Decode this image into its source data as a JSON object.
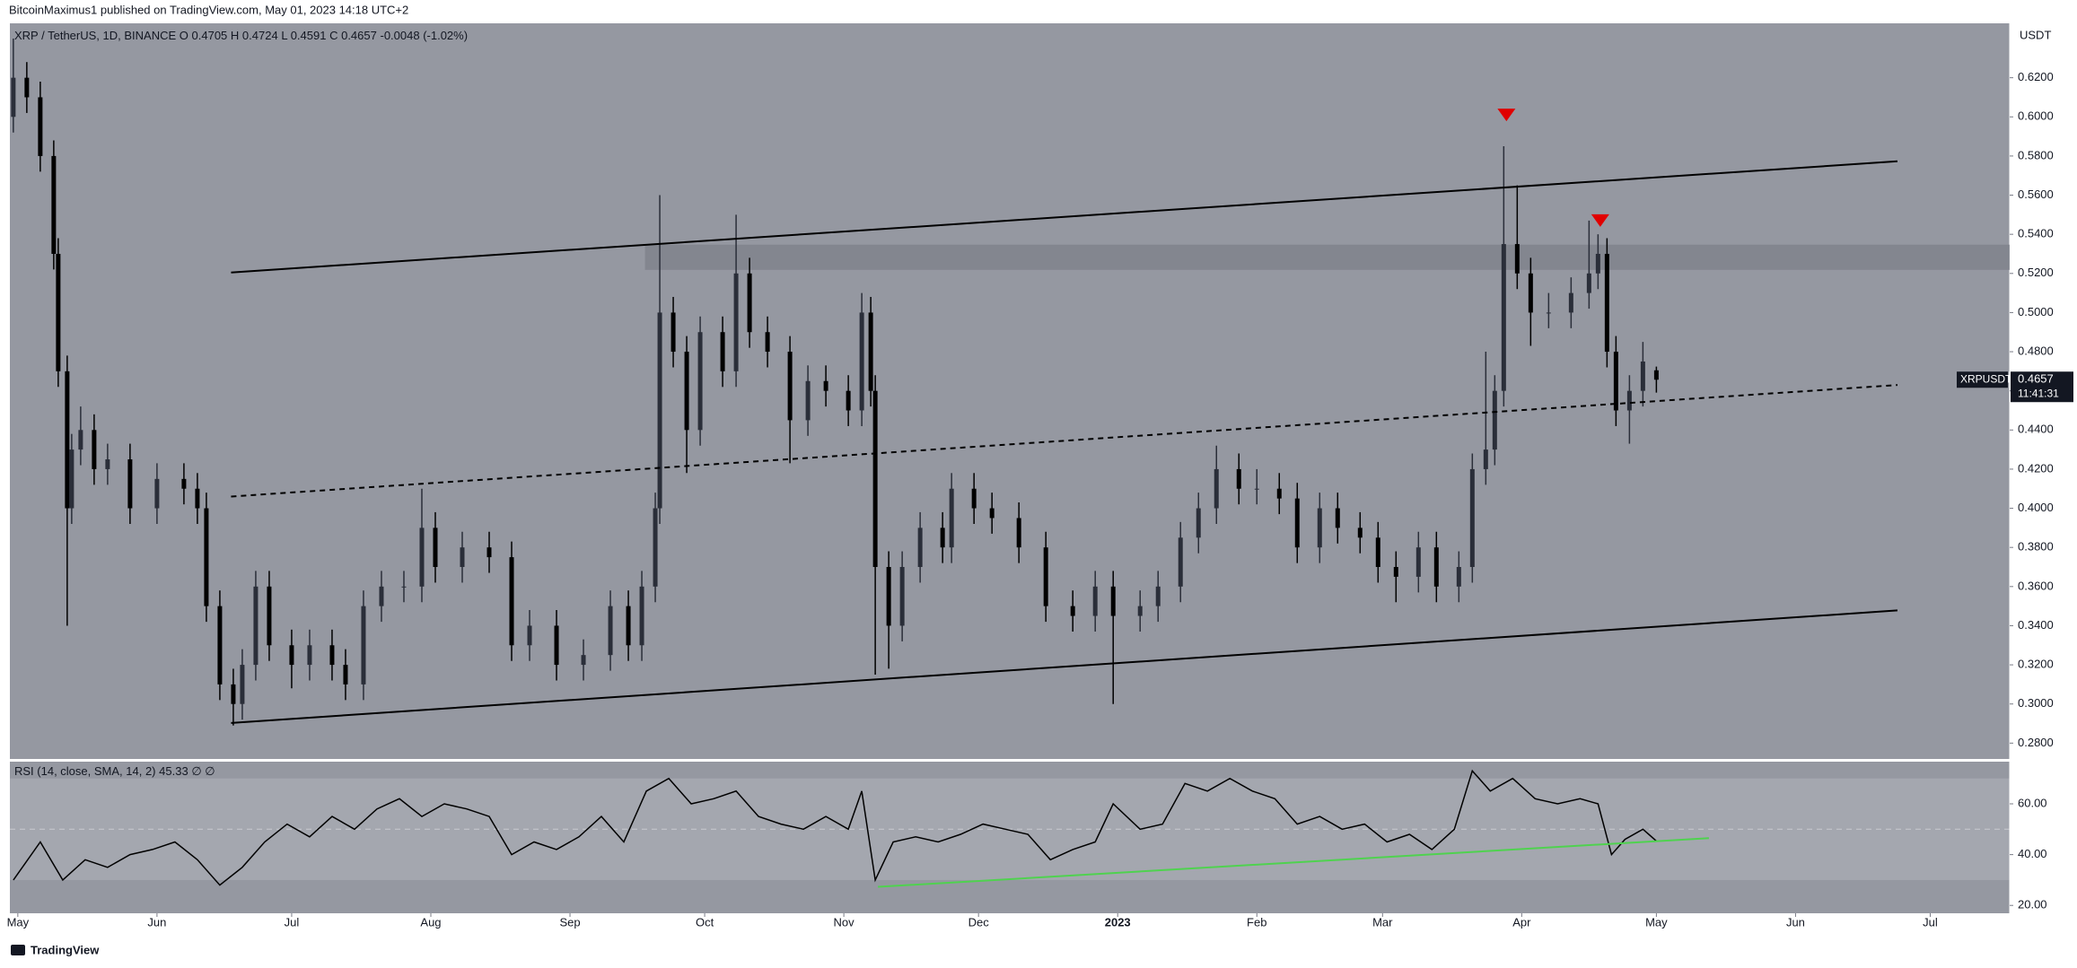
{
  "header": {
    "publisher": "BitcoinMaximus1 published on TradingView.com, May 01, 2023 14:18 UTC+2",
    "brand": "TradingView"
  },
  "chart_data": {
    "type": "candlestick",
    "symbol": "XRP / TetherUS, 1D, BINANCE",
    "legend": {
      "o_label": "O",
      "o": 0.4705,
      "h_label": "H",
      "h": 0.4724,
      "l_label": "L",
      "l": 0.4591,
      "c_label": "C",
      "c": 0.4657,
      "change": -0.0048,
      "change_pct": "(-1.02%)"
    },
    "currency": "USDT",
    "symbol_tag": "XRPUSDT",
    "countdown": "11:41:31",
    "up_color": "#2a2e39",
    "down_color": "#000000",
    "background": "#9598a1",
    "x": [
      -1,
      2,
      5,
      8,
      9,
      11,
      12,
      14,
      17,
      20,
      25,
      31,
      37,
      40,
      42,
      45,
      48,
      50,
      53,
      56,
      61,
      65,
      70,
      73,
      77,
      81,
      86,
      90,
      93,
      99,
      105,
      110,
      114,
      120,
      126,
      132,
      136,
      139,
      142,
      143,
      146,
      149,
      152,
      157,
      160,
      163,
      167,
      172,
      176,
      180,
      185,
      188,
      190,
      191,
      194,
      197,
      201,
      206,
      208,
      213,
      217,
      223,
      229,
      235,
      240,
      244,
      250,
      254,
      259,
      263,
      267,
      272,
      276,
      281,
      285,
      290,
      294,
      299,
      303,
      307,
      312,
      316,
      321,
      324,
      327,
      329,
      331,
      334,
      337,
      341,
      346,
      350,
      352,
      354,
      356,
      359,
      362,
      365
    ],
    "open": [
      0.6,
      0.62,
      0.61,
      0.58,
      0.53,
      0.47,
      0.4,
      0.43,
      0.44,
      0.42,
      0.425,
      0.4,
      0.415,
      0.41,
      0.4,
      0.35,
      0.31,
      0.3,
      0.32,
      0.36,
      0.33,
      0.32,
      0.33,
      0.32,
      0.31,
      0.35,
      0.36,
      0.36,
      0.39,
      0.37,
      0.38,
      0.375,
      0.33,
      0.34,
      0.32,
      0.325,
      0.35,
      0.33,
      0.36,
      0.4,
      0.5,
      0.48,
      0.44,
      0.49,
      0.47,
      0.52,
      0.49,
      0.48,
      0.445,
      0.465,
      0.46,
      0.45,
      0.5,
      0.46,
      0.37,
      0.34,
      0.37,
      0.39,
      0.38,
      0.41,
      0.4,
      0.395,
      0.38,
      0.35,
      0.345,
      0.36,
      0.345,
      0.35,
      0.36,
      0.385,
      0.4,
      0.42,
      0.41,
      0.41,
      0.405,
      0.38,
      0.4,
      0.39,
      0.385,
      0.37,
      0.365,
      0.38,
      0.36,
      0.37,
      0.42,
      0.43,
      0.46,
      0.535,
      0.52,
      0.5,
      0.5,
      0.51,
      0.52,
      0.53,
      0.48,
      0.45,
      0.46,
      0.4705
    ],
    "high": [
      0.64,
      0.628,
      0.618,
      0.588,
      0.538,
      0.478,
      0.438,
      0.452,
      0.448,
      0.433,
      0.433,
      0.423,
      0.423,
      0.418,
      0.408,
      0.358,
      0.318,
      0.328,
      0.368,
      0.368,
      0.338,
      0.338,
      0.338,
      0.328,
      0.358,
      0.368,
      0.368,
      0.41,
      0.398,
      0.388,
      0.388,
      0.383,
      0.348,
      0.348,
      0.333,
      0.358,
      0.358,
      0.368,
      0.408,
      0.56,
      0.508,
      0.488,
      0.498,
      0.498,
      0.55,
      0.528,
      0.498,
      0.488,
      0.473,
      0.473,
      0.468,
      0.51,
      0.508,
      0.468,
      0.378,
      0.378,
      0.398,
      0.398,
      0.418,
      0.418,
      0.408,
      0.403,
      0.388,
      0.358,
      0.368,
      0.368,
      0.358,
      0.368,
      0.393,
      0.408,
      0.432,
      0.428,
      0.42,
      0.418,
      0.413,
      0.408,
      0.408,
      0.398,
      0.393,
      0.378,
      0.388,
      0.388,
      0.378,
      0.428,
      0.48,
      0.468,
      0.585,
      0.565,
      0.528,
      0.51,
      0.518,
      0.547,
      0.54,
      0.538,
      0.488,
      0.468,
      0.485,
      0.4724
    ],
    "low": [
      0.592,
      0.602,
      0.572,
      0.522,
      0.462,
      0.34,
      0.392,
      0.422,
      0.412,
      0.412,
      0.392,
      0.392,
      0.402,
      0.392,
      0.342,
      0.302,
      0.289,
      0.292,
      0.312,
      0.322,
      0.308,
      0.312,
      0.312,
      0.302,
      0.302,
      0.342,
      0.352,
      0.352,
      0.362,
      0.362,
      0.367,
      0.322,
      0.322,
      0.312,
      0.312,
      0.317,
      0.322,
      0.322,
      0.352,
      0.392,
      0.472,
      0.418,
      0.432,
      0.462,
      0.462,
      0.482,
      0.472,
      0.423,
      0.437,
      0.452,
      0.442,
      0.442,
      0.452,
      0.315,
      0.318,
      0.332,
      0.362,
      0.372,
      0.372,
      0.392,
      0.387,
      0.372,
      0.342,
      0.337,
      0.337,
      0.3,
      0.337,
      0.342,
      0.352,
      0.377,
      0.392,
      0.402,
      0.402,
      0.397,
      0.372,
      0.372,
      0.382,
      0.377,
      0.362,
      0.352,
      0.357,
      0.352,
      0.352,
      0.362,
      0.412,
      0.422,
      0.452,
      0.512,
      0.483,
      0.492,
      0.492,
      0.502,
      0.512,
      0.472,
      0.442,
      0.433,
      0.452,
      0.4591
    ],
    "close": [
      0.62,
      0.61,
      0.58,
      0.53,
      0.47,
      0.4,
      0.43,
      0.44,
      0.42,
      0.425,
      0.4,
      0.415,
      0.41,
      0.4,
      0.35,
      0.31,
      0.3,
      0.32,
      0.36,
      0.33,
      0.32,
      0.33,
      0.32,
      0.31,
      0.35,
      0.36,
      0.36,
      0.39,
      0.37,
      0.38,
      0.375,
      0.33,
      0.34,
      0.32,
      0.325,
      0.35,
      0.33,
      0.36,
      0.4,
      0.5,
      0.48,
      0.44,
      0.49,
      0.47,
      0.52,
      0.49,
      0.48,
      0.445,
      0.465,
      0.46,
      0.45,
      0.5,
      0.46,
      0.37,
      0.34,
      0.37,
      0.39,
      0.38,
      0.41,
      0.4,
      0.395,
      0.38,
      0.35,
      0.345,
      0.36,
      0.345,
      0.35,
      0.36,
      0.385,
      0.4,
      0.42,
      0.41,
      0.41,
      0.405,
      0.38,
      0.4,
      0.39,
      0.385,
      0.37,
      0.365,
      0.38,
      0.36,
      0.37,
      0.42,
      0.43,
      0.46,
      0.535,
      0.52,
      0.5,
      0.5,
      0.51,
      0.52,
      0.53,
      0.48,
      0.45,
      0.46,
      0.475,
      0.4657
    ],
    "xlim": [
      -1.77,
      443.7
    ],
    "xticks": [
      {
        "value": 0,
        "label": "May"
      },
      {
        "value": 31,
        "label": "Jun"
      },
      {
        "value": 61,
        "label": "Jul"
      },
      {
        "value": 92,
        "label": "Aug"
      },
      {
        "value": 123,
        "label": "Sep"
      },
      {
        "value": 153,
        "label": "Oct"
      },
      {
        "value": 184,
        "label": "Nov"
      },
      {
        "value": 214,
        "label": "Dec"
      },
      {
        "value": 245,
        "label": "2023"
      },
      {
        "value": 276,
        "label": "Feb"
      },
      {
        "value": 304,
        "label": "Mar"
      },
      {
        "value": 335,
        "label": "Apr"
      },
      {
        "value": 365,
        "label": "May"
      },
      {
        "value": 396,
        "label": "Jun"
      },
      {
        "value": 426,
        "label": "Jul"
      }
    ],
    "ylim": [
      0.2719,
      0.6478
    ],
    "yticks": [
      {
        "value": 0.28,
        "label": "0.2800"
      },
      {
        "value": 0.3,
        "label": "0.3000"
      },
      {
        "value": 0.32,
        "label": "0.3200"
      },
      {
        "value": 0.34,
        "label": "0.3400"
      },
      {
        "value": 0.36,
        "label": "0.3600"
      },
      {
        "value": 0.38,
        "label": "0.3800"
      },
      {
        "value": 0.4,
        "label": "0.4000"
      },
      {
        "value": 0.42,
        "label": "0.4200"
      },
      {
        "value": 0.44,
        "label": "0.4400"
      },
      {
        "value": 0.46,
        "label": "0.4600"
      },
      {
        "value": 0.48,
        "label": "0.4800"
      },
      {
        "value": 0.5,
        "label": "0.5000"
      },
      {
        "value": 0.52,
        "label": "0.5200"
      },
      {
        "value": 0.54,
        "label": "0.5400"
      },
      {
        "value": 0.56,
        "label": "0.5600"
      },
      {
        "value": 0.58,
        "label": "0.5800"
      },
      {
        "value": 0.6,
        "label": "0.6000"
      },
      {
        "value": 0.62,
        "label": "0.6200"
      }
    ],
    "trend_lines": [
      {
        "x": [
          47.5,
          418.7
        ],
        "y": [
          0.5205,
          0.5773
        ],
        "dashed": false
      },
      {
        "x": [
          47.5,
          418.7
        ],
        "y": [
          0.406,
          0.463
        ],
        "dashed": true
      },
      {
        "x": [
          47.5,
          418.7
        ],
        "y": [
          0.2903,
          0.3478
        ],
        "dashed": false
      }
    ],
    "zone": {
      "x": [
        139.7,
        443.7
      ],
      "y": [
        0.5218,
        0.5347
      ],
      "color": "#7d8089"
    },
    "markers": {
      "color": "#e00000",
      "x": [
        331.6,
        352.5
      ],
      "y": [
        0.601,
        0.547
      ]
    },
    "rsi": {
      "label": "RSI (14, close, SMA, 14, 2)",
      "last": 45.33,
      "extra": "∅ ∅",
      "color": "#000000",
      "band": [
        30,
        70
      ],
      "band_color": "#a4a7af",
      "midline": 50,
      "x": [
        -1,
        5,
        10,
        15,
        20,
        25,
        30,
        35,
        40,
        45,
        50,
        55,
        60,
        65,
        70,
        75,
        80,
        85,
        90,
        95,
        100,
        105,
        110,
        115,
        120,
        125,
        130,
        135,
        140,
        145,
        150,
        155,
        160,
        165,
        170,
        175,
        180,
        185,
        188,
        191,
        195,
        200,
        205,
        210,
        215,
        220,
        225,
        230,
        235,
        240,
        244,
        250,
        255,
        260,
        265,
        270,
        275,
        280,
        285,
        290,
        295,
        300,
        305,
        310,
        315,
        320,
        324,
        328,
        333,
        338,
        343,
        348,
        352,
        355,
        358,
        362,
        365
      ],
      "values": [
        30,
        45,
        30,
        38,
        35,
        40,
        42,
        45,
        38,
        28,
        35,
        45,
        52,
        47,
        55,
        50,
        58,
        62,
        55,
        60,
        58,
        55,
        40,
        45,
        42,
        47,
        55,
        45,
        65,
        70,
        60,
        62,
        65,
        55,
        52,
        50,
        55,
        50,
        65,
        30,
        45,
        47,
        45,
        48,
        52,
        50,
        48,
        38,
        42,
        45,
        60,
        50,
        52,
        68,
        65,
        70,
        65,
        62,
        52,
        55,
        50,
        52,
        45,
        48,
        42,
        50,
        73,
        65,
        70,
        62,
        60,
        62,
        60,
        40,
        46,
        50,
        45.33
      ],
      "ylim": [
        16.9,
        76.6
      ],
      "yticks": [
        {
          "value": 20,
          "label": "20.00"
        },
        {
          "value": 40,
          "label": "40.00"
        },
        {
          "value": 60,
          "label": "60.00"
        }
      ],
      "trend": {
        "x": [
          191.6,
          376.7
        ],
        "y": [
          27.3,
          46.5
        ],
        "color": "#4fd24f"
      }
    }
  }
}
